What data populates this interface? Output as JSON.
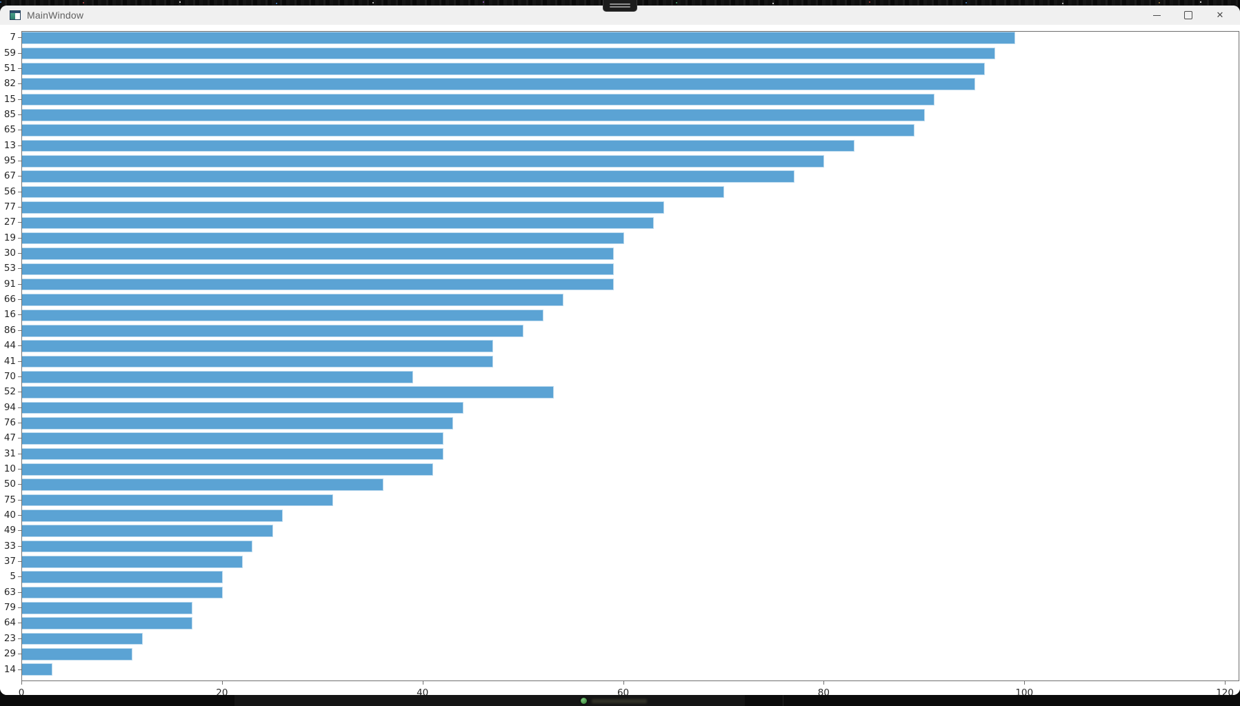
{
  "window": {
    "title": "MainWindow",
    "icons": {
      "app": "app-window-icon",
      "minimize": "minimize-icon",
      "maximize": "maximize-icon",
      "close": "close-icon"
    },
    "close_glyph": "✕"
  },
  "taskbar": {
    "status_icon": "green-status-dot"
  },
  "chart_data": {
    "type": "bar",
    "orientation": "horizontal",
    "title": "",
    "xlabel": "",
    "ylabel": "",
    "categories": [
      "7",
      "59",
      "51",
      "82",
      "15",
      "85",
      "65",
      "13",
      "95",
      "67",
      "56",
      "77",
      "27",
      "19",
      "30",
      "53",
      "91",
      "66",
      "16",
      "86",
      "44",
      "41",
      "70",
      "52",
      "94",
      "76",
      "47",
      "31",
      "10",
      "50",
      "75",
      "40",
      "49",
      "33",
      "37",
      "5",
      "63",
      "79",
      "64",
      "23",
      "29",
      "14"
    ],
    "values": [
      99,
      97,
      96,
      95,
      91,
      90,
      89,
      83,
      80,
      77,
      70,
      64,
      63,
      60,
      59,
      59,
      59,
      54,
      52,
      50,
      47,
      47,
      39,
      53,
      44,
      43,
      42,
      42,
      41,
      36,
      31,
      26,
      25,
      23,
      22,
      20,
      20,
      17,
      17,
      12,
      11,
      3
    ],
    "x_ticks": [
      0,
      20,
      40,
      60,
      80,
      100,
      120
    ],
    "xlim": [
      0,
      121
    ],
    "grid": false,
    "legend_position": null,
    "bar_color": "#5ba3d4",
    "axis_color": "#6e6e6e",
    "label_color": "#262626"
  }
}
